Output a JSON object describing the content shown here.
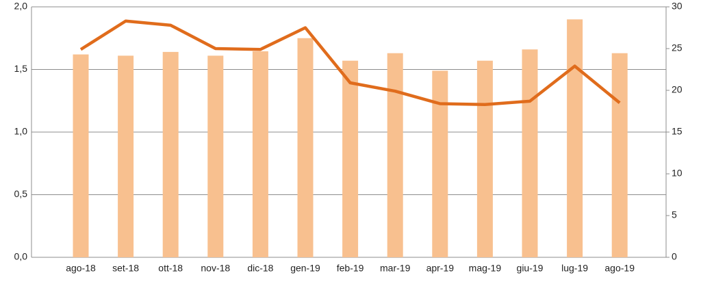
{
  "chart_data": {
    "type": "bar-line",
    "categories": [
      "ago-18",
      "set-18",
      "ott-18",
      "nov-18",
      "dic-18",
      "gen-19",
      "feb-19",
      "mar-19",
      "apr-19",
      "mag-19",
      "giu-19",
      "lug-19",
      "ago-19"
    ],
    "series": [
      {
        "type": "bar",
        "color": "#f8c08f",
        "values": [
          1.62,
          1.61,
          1.64,
          1.61,
          1.645,
          1.75,
          1.57,
          1.63,
          1.49,
          1.57,
          1.66,
          1.9,
          1.63
        ]
      },
      {
        "type": "line",
        "axis": "y2",
        "color": "#e06c1c",
        "values": [
          24.9,
          28.3,
          27.8,
          25.0,
          24.9,
          27.5,
          20.9,
          19.9,
          18.4,
          18.3,
          18.7,
          22.9,
          18.5
        ]
      }
    ],
    "ylim": [
      0,
      2
    ],
    "yticks": [
      {
        "value": 0,
        "label": "0,0"
      },
      {
        "value": 0.5,
        "label": "0,5"
      },
      {
        "value": 1,
        "label": "1,0"
      },
      {
        "value": 1.5,
        "label": "1,5"
      },
      {
        "value": 2,
        "label": "2,0"
      }
    ],
    "y2lim": [
      0,
      30
    ],
    "y2ticks": [
      0,
      5,
      10,
      15,
      20,
      25,
      30
    ],
    "grid": true
  }
}
